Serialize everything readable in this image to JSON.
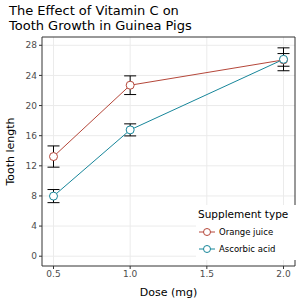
{
  "chart_data": {
    "type": "line",
    "title": "The Effect of Vitamin C on\nTooth Growth in Guinea Pigs",
    "x_label": "Dose (mg)",
    "y_label": "Tooth length",
    "x": [
      0.5,
      1.0,
      2.0
    ],
    "series": [
      {
        "name": "Orange juice",
        "color": "#b5473a",
        "marker": "circle",
        "line_style": "solid",
        "values": [
          13.23,
          22.7,
          26.06
        ],
        "errors": [
          1.41,
          1.24,
          0.84
        ]
      },
      {
        "name": "Ascorbic acid",
        "color": "#17869a",
        "marker": "circle",
        "line_style": "solid",
        "values": [
          7.98,
          16.77,
          26.14
        ],
        "errors": [
          0.87,
          0.8,
          1.52
        ]
      }
    ],
    "xlim": [
      0.425,
      2.075
    ],
    "xticks": [
      0.5,
      {
        "value": 1.0,
        "label": "1.0"
      },
      1.5,
      {
        "value": 2.0,
        "label": "2.0"
      }
    ],
    "ylim": [
      -1.3,
      29.1
    ],
    "yticks": [
      0,
      4,
      8,
      12,
      16,
      20,
      24,
      28
    ],
    "grid": true,
    "legend": "bottom-right",
    "legend_title": "Supplement type"
  }
}
